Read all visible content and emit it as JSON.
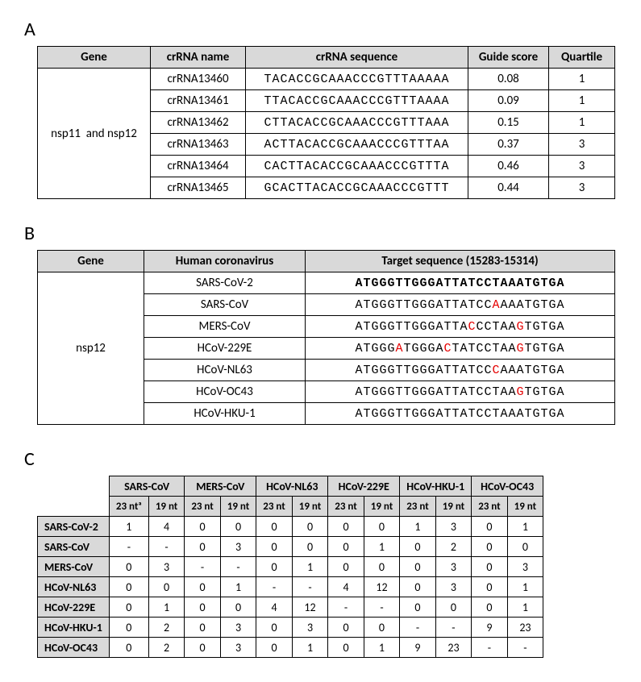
{
  "panelA": {
    "label": "A",
    "columns": [
      "Gene",
      "crRNA name",
      "crRNA sequence",
      "Guide score",
      "Quartile"
    ],
    "gene": "nsp11  and nsp12",
    "rows": [
      {
        "name": "crRNA13460",
        "seq": "TACACCGCAAACCCGTTTAAAAA",
        "score": "0.08",
        "quartile": "1"
      },
      {
        "name": "crRNA13461",
        "seq": "TTACACCGCAAACCCGTTTAAAA",
        "score": "0.09",
        "quartile": "1"
      },
      {
        "name": "crRNA13462",
        "seq": "CTTACACCGCAAACCCGTTTAAA",
        "score": "0.15",
        "quartile": "1"
      },
      {
        "name": "crRNA13463",
        "seq": "ACTTACACCGCAAACCCGTTTAA",
        "score": "0.37",
        "quartile": "3"
      },
      {
        "name": "crRNA13464",
        "seq": "CACTTACACCGCAAACCCGTTTA",
        "score": "0.46",
        "quartile": "3"
      },
      {
        "name": "crRNA13465",
        "seq": "GCACTTACACCGCAAACCCGTTT",
        "score": "0.44",
        "quartile": "3"
      }
    ]
  },
  "panelB": {
    "label": "B",
    "columns": [
      "Gene",
      "Human coronavirus",
      "Target sequence (15283-15314)"
    ],
    "gene": "nsp12",
    "rows": [
      {
        "virus": "SARS-CoV-2",
        "bold": true,
        "seq": [
          [
            "ATGGGTTGGGATTATCCTAAATGTGA",
            0
          ]
        ]
      },
      {
        "virus": "SARS-CoV",
        "bold": false,
        "seq": [
          [
            "ATGGGTTGGGATTATCC",
            0
          ],
          [
            "A",
            1
          ],
          [
            "AAATGTGA",
            0
          ]
        ]
      },
      {
        "virus": "MERS-CoV",
        "bold": false,
        "seq": [
          [
            "ATGGGTTGGGATTA",
            0
          ],
          [
            "C",
            1
          ],
          [
            "CCTAA",
            0
          ],
          [
            "G",
            1
          ],
          [
            "TGTGA",
            0
          ]
        ]
      },
      {
        "virus": "HCoV-229E",
        "bold": false,
        "seq": [
          [
            "ATGGG",
            0
          ],
          [
            "A",
            1
          ],
          [
            "TGGGA",
            0
          ],
          [
            "C",
            1
          ],
          [
            "TATCCTAA",
            0
          ],
          [
            "G",
            1
          ],
          [
            "TGTGA",
            0
          ]
        ]
      },
      {
        "virus": "HCoV-NL63",
        "bold": false,
        "seq": [
          [
            "ATGGGTTGGGATTATCC",
            0
          ],
          [
            "C",
            1
          ],
          [
            "AAATGTGA",
            0
          ]
        ]
      },
      {
        "virus": "HCoV-OC43",
        "bold": false,
        "seq": [
          [
            "ATGGGTTGGGATTATCCTAA",
            0
          ],
          [
            "G",
            1
          ],
          [
            "TGTGA",
            0
          ]
        ]
      },
      {
        "virus": "HCoV-HKU-1",
        "bold": false,
        "seq": [
          [
            "ATGGGTTGGGATTATCCTAAATGTGA",
            0
          ]
        ]
      }
    ]
  },
  "panelC": {
    "label": "C",
    "col_groups": [
      "SARS-CoV",
      "MERS-CoV",
      "HCoV-NL63",
      "HCoV-229E",
      "HCoV-HKU-1",
      "HCoV-OC43"
    ],
    "sub_cols_first": [
      "23 ntᵃ",
      "19 nt"
    ],
    "sub_cols": [
      "23 nt",
      "19 nt"
    ],
    "row_heads": [
      "SARS-CoV-2",
      "SARS-CoV",
      "MERS-CoV",
      "HCoV-NL63",
      "HCoV-229E",
      "HCoV-HKU-1",
      "HCoV-OC43"
    ],
    "cells": [
      [
        "1",
        "4",
        "0",
        "0",
        "0",
        "0",
        "0",
        "0",
        "1",
        "3",
        "0",
        "1"
      ],
      [
        "-",
        "-",
        "0",
        "3",
        "0",
        "0",
        "0",
        "1",
        "0",
        "2",
        "0",
        "0"
      ],
      [
        "0",
        "3",
        "-",
        "-",
        "0",
        "1",
        "0",
        "0",
        "0",
        "3",
        "0",
        "3"
      ],
      [
        "0",
        "0",
        "0",
        "1",
        "-",
        "-",
        "4",
        "12",
        "0",
        "3",
        "0",
        "1"
      ],
      [
        "0",
        "1",
        "0",
        "0",
        "4",
        "12",
        "-",
        "-",
        "0",
        "0",
        "0",
        "1"
      ],
      [
        "0",
        "2",
        "0",
        "3",
        "0",
        "3",
        "0",
        "0",
        "-",
        "-",
        "9",
        "23"
      ],
      [
        "0",
        "2",
        "0",
        "3",
        "0",
        "1",
        "0",
        "1",
        "9",
        "23",
        "-",
        "-"
      ]
    ]
  }
}
